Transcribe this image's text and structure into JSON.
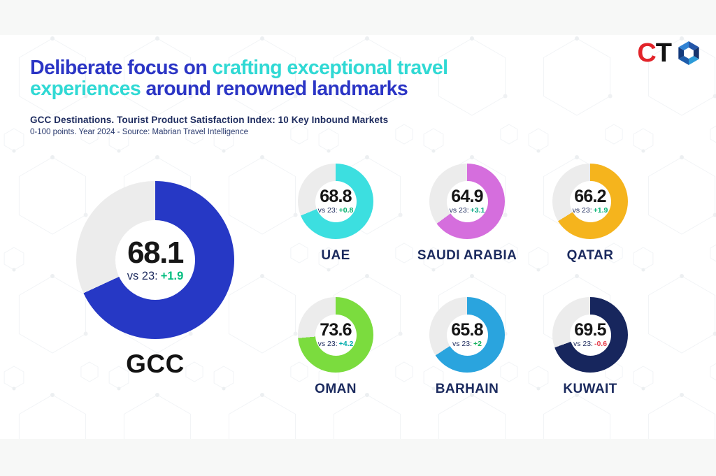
{
  "brand": {
    "logo_c": "C",
    "logo_t": "T",
    "logo_c_color": "#e2242a",
    "logo_t_color": "#121212",
    "accent_blue": "#2b35c5",
    "accent_cyan": "#30d9d4"
  },
  "header": {
    "title_line1": [
      {
        "text": "Deliberate focus on ",
        "tone": "blue"
      },
      {
        "text": "crafting exceptional travel",
        "tone": "cyan"
      }
    ],
    "title_line2": [
      {
        "text": "experiences ",
        "tone": "cyan"
      },
      {
        "text": "around renowned landmarks",
        "tone": "blue"
      }
    ],
    "subtitle": "GCC Destinations. Tourist Product Satisfaction Index: 10 Key Inbound Markets",
    "source": "0-100 points. Year 2024 - Source: Mabrian Travel Intelligence"
  },
  "chart_data": {
    "type": "donut",
    "title": "GCC Destinations. Tourist Product Satisfaction Index: 10 Key Inbound Markets",
    "scale": "0-100 points",
    "year": "2024",
    "source": "Mabrian Travel Intelligence",
    "vs_label": "vs 23:",
    "track_color": "#ececec",
    "main": {
      "label": "GCC",
      "value": 68.1,
      "change": "+1.9",
      "ring_color": "#2638c5",
      "change_color": "#00bd7e"
    },
    "items": [
      {
        "label": "UAE",
        "value": 68.8,
        "change": "+0.8",
        "ring_color": "#3cdfe0",
        "change_color": "#00b06c"
      },
      {
        "label": "SAUDI ARABIA",
        "value": 64.9,
        "change": "+3.1",
        "ring_color": "#d56edd",
        "change_color": "#0ba985"
      },
      {
        "label": "QATAR",
        "value": 66.2,
        "change": "+1.9",
        "ring_color": "#f5b41d",
        "change_color": "#00b272"
      },
      {
        "label": "OMAN",
        "value": 73.6,
        "change": "+4.2",
        "ring_color": "#7bdc3e",
        "change_color": "#00acac"
      },
      {
        "label": "BARHAIN",
        "value": 65.8,
        "change": "+2",
        "ring_color": "#2aa4de",
        "change_color": "#16b15e"
      },
      {
        "label": "KUWAIT",
        "value": 69.5,
        "change": "-0.6",
        "ring_color": "#17265d",
        "change_color": "#e5404e"
      }
    ]
  }
}
